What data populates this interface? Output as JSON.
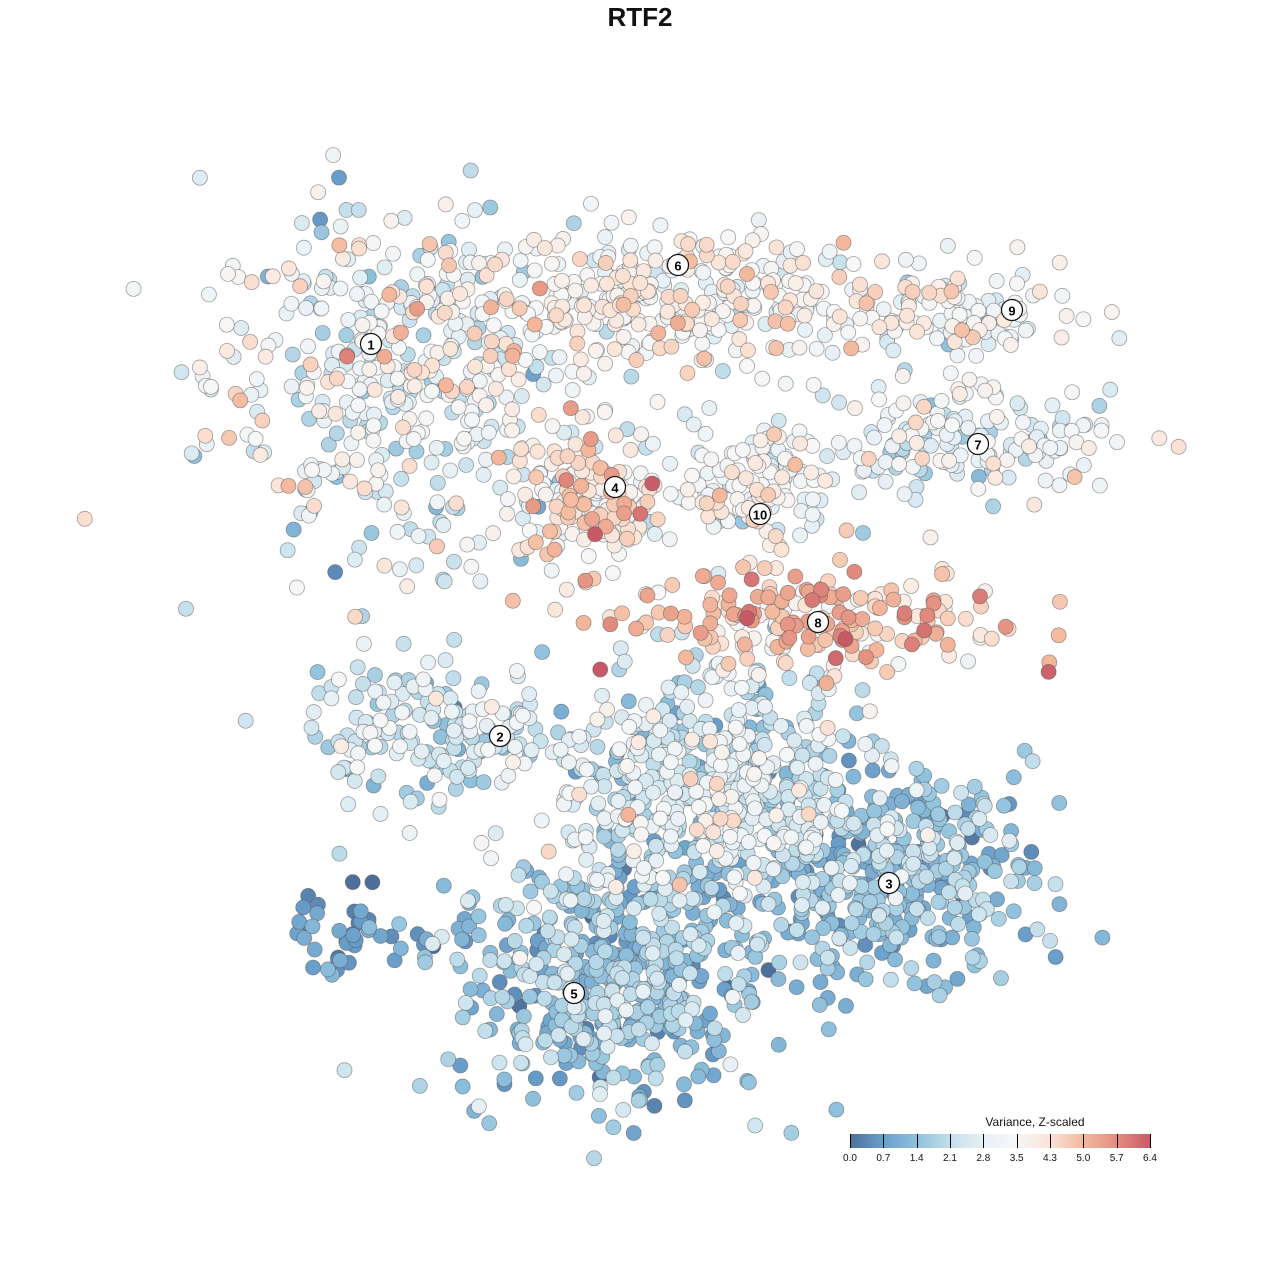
{
  "chart_data": {
    "type": "scatter",
    "title": "RTF2",
    "xlabel": "",
    "ylabel": "",
    "xlim": [
      -64,
      64
    ],
    "ylim": [
      -64,
      64
    ],
    "grid": false,
    "legend": {
      "title": "Variance, Z-scaled",
      "placement": "bottom-right",
      "ticks": [
        "0.0",
        "0.7",
        "1.4",
        "2.1",
        "2.8",
        "3.5",
        "4.3",
        "5.0",
        "5.7",
        "6.4"
      ],
      "range": [
        0,
        6.4
      ],
      "colors": [
        "#4d6f9b",
        "#6a9fcb",
        "#8ec0dc",
        "#c3dfeb",
        "#e8f1f6",
        "#f7f7f7",
        "#fbe3d6",
        "#f4b99d",
        "#e38e7f",
        "#c85a68"
      ]
    },
    "clusters": [
      {
        "label": "1",
        "label_pos": [
          -26.9,
          29.6
        ],
        "center": [
          -25,
          26
        ],
        "spread": [
          9,
          9
        ],
        "n": 420,
        "mean": 3.0,
        "sd": 0.9
      },
      {
        "label": "6",
        "label_pos": [
          3.8,
          37.5
        ],
        "center": [
          2,
          34
        ],
        "spread": [
          12,
          3.5
        ],
        "n": 380,
        "mean": 3.5,
        "sd": 0.7
      },
      {
        "label": "9",
        "label_pos": [
          37.2,
          33.0
        ],
        "center": [
          33,
          32
        ],
        "spread": [
          5.5,
          2.5
        ],
        "n": 110,
        "mean": 3.2,
        "sd": 0.6
      },
      {
        "label": "7",
        "label_pos": [
          33.8,
          19.6
        ],
        "center": [
          31,
          20
        ],
        "spread": [
          8,
          2.5
        ],
        "n": 170,
        "mean": 2.8,
        "sd": 0.8
      },
      {
        "label": "4",
        "label_pos": [
          -2.5,
          15.3
        ],
        "center": [
          -5,
          14.5
        ],
        "spread": [
          3.8,
          3.5
        ],
        "n": 180,
        "mean": 3.9,
        "sd": 0.9
      },
      {
        "label": "10",
        "label_pos": [
          12.0,
          12.6
        ],
        "center": [
          11,
          15
        ],
        "spread": [
          4,
          3
        ],
        "n": 120,
        "mean": 3.4,
        "sd": 0.6
      },
      {
        "label": "8",
        "label_pos": [
          17.8,
          1.8
        ],
        "center": [
          17,
          2
        ],
        "spread": [
          10,
          2.5
        ],
        "n": 200,
        "mean": 4.6,
        "sd": 0.8
      },
      {
        "label": "2",
        "label_pos": [
          -14.0,
          -9.6
        ],
        "center": [
          -21,
          -9
        ],
        "spread": [
          6,
          3.5
        ],
        "n": 170,
        "mean": 2.4,
        "sd": 0.7
      },
      {
        "label": "",
        "label_pos": null,
        "center": [
          7,
          -15
        ],
        "spread": [
          8,
          6
        ],
        "n": 600,
        "mean": 2.4,
        "sd": 0.8
      },
      {
        "label": "3",
        "label_pos": [
          24.9,
          -24.3
        ],
        "center": [
          25,
          -23
        ],
        "spread": [
          7,
          5
        ],
        "n": 420,
        "mean": 1.4,
        "sd": 0.6
      },
      {
        "label": "5",
        "label_pos": [
          -6.6,
          -35.3
        ],
        "center": [
          -3,
          -34
        ],
        "spread": [
          8,
          6
        ],
        "n": 520,
        "mean": 1.5,
        "sd": 0.6
      },
      {
        "label": "",
        "label_pos": null,
        "center": [
          -29,
          -29
        ],
        "spread": [
          3.5,
          2
        ],
        "n": 40,
        "mean": 0.6,
        "sd": 0.4
      }
    ]
  }
}
